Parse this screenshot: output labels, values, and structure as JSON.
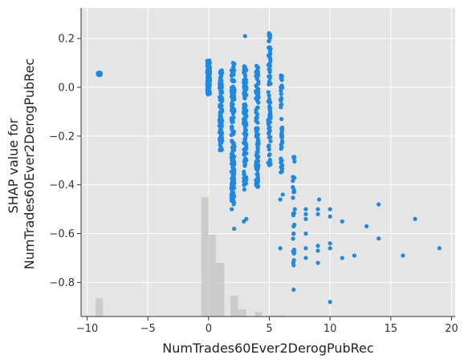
{
  "chart_data": {
    "type": "scatter",
    "title": "",
    "xlabel": "NumTrades60Ever2DerogPubRec",
    "ylabel_lines": [
      "SHAP value for",
      "NumTrades60Ever2DerogPubRec"
    ],
    "xlim": [
      -10.5,
      20.3
    ],
    "ylim": [
      -0.94,
      0.325
    ],
    "xticks": [
      -10,
      -5,
      0,
      5,
      10,
      15,
      20
    ],
    "xtick_labels": [
      "−10",
      "−5",
      "0",
      "5",
      "10",
      "15",
      "20"
    ],
    "yticks": [
      -0.8,
      -0.6,
      -0.4,
      -0.2,
      0.0,
      0.2
    ],
    "ytick_labels": [
      "−0.8",
      "−0.6",
      "−0.4",
      "−0.2",
      "0.0",
      "0.2"
    ],
    "grid": true,
    "background_color": "#e5e5e5",
    "point_color": "#1e88e5",
    "histogram_color": "#c8c8c8",
    "histogram_note": "background histogram of feature distribution, bar tops in y-data units",
    "histogram": [
      {
        "x0": -9.3,
        "x1": -8.7,
        "top": -0.865
      },
      {
        "x0": -0.6,
        "x1": 0.0,
        "top": -0.45
      },
      {
        "x0": 0.0,
        "x1": 0.6,
        "top": -0.605
      },
      {
        "x0": 0.6,
        "x1": 1.3,
        "top": -0.72
      },
      {
        "x0": 1.8,
        "x1": 2.4,
        "top": -0.855
      },
      {
        "x0": 2.4,
        "x1": 3.1,
        "top": -0.91
      },
      {
        "x0": 3.8,
        "x1": 4.4,
        "top": -0.922
      },
      {
        "x0": 5.1,
        "x1": 6.3,
        "top": -0.935
      }
    ],
    "point_groups": [
      {
        "x": -9.0,
        "ymin": 0.05,
        "ymax": 0.06,
        "jitter": 0.25,
        "n": 40
      },
      {
        "x": 0.0,
        "ymin": -0.03,
        "ymax": 0.11,
        "jitter": 0.22,
        "n": 160
      },
      {
        "x": 1.0,
        "ymin": -0.26,
        "ymax": 0.07,
        "jitter": 0.22,
        "n": 110
      },
      {
        "x": 2.0,
        "ymin": -0.48,
        "ymax": 0.12,
        "jitter": 0.25,
        "n": 150
      },
      {
        "x": 3.0,
        "ymin": -0.42,
        "ymax": 0.1,
        "jitter": 0.22,
        "n": 120
      },
      {
        "x": 4.0,
        "ymin": -0.41,
        "ymax": 0.09,
        "jitter": 0.22,
        "n": 100
      },
      {
        "x": 5.0,
        "ymin": -0.32,
        "ymax": 0.27,
        "jitter": 0.2,
        "n": 80
      },
      {
        "x": 6.0,
        "ymin": -0.35,
        "ymax": 0.05,
        "jitter": 0.15,
        "n": 40
      },
      {
        "x": 7.0,
        "ymin": -0.73,
        "ymax": -0.27,
        "jitter": 0.15,
        "n": 25
      }
    ],
    "points": [
      {
        "x": 2.1,
        "y": -0.58
      },
      {
        "x": 1.9,
        "y": -0.5
      },
      {
        "x": 3.0,
        "y": 0.21
      },
      {
        "x": 2.9,
        "y": -0.55
      },
      {
        "x": 3.1,
        "y": -0.54
      },
      {
        "x": 2.0,
        "y": -0.4
      },
      {
        "x": 5.9,
        "y": -0.66
      },
      {
        "x": 5.9,
        "y": -0.46
      },
      {
        "x": 6.1,
        "y": -0.44
      },
      {
        "x": 6.0,
        "y": -0.19
      },
      {
        "x": 6.0,
        "y": -0.17
      },
      {
        "x": 6.0,
        "y": 0.04
      },
      {
        "x": 6.0,
        "y": -0.07
      },
      {
        "x": 6.0,
        "y": -0.13
      },
      {
        "x": 7.0,
        "y": -0.83
      },
      {
        "x": 7.0,
        "y": -0.73
      },
      {
        "x": 7.0,
        "y": -0.6
      },
      {
        "x": 7.0,
        "y": -0.57
      },
      {
        "x": 7.1,
        "y": -0.5
      },
      {
        "x": 7.0,
        "y": -0.43
      },
      {
        "x": 8.0,
        "y": -0.7
      },
      {
        "x": 8.0,
        "y": -0.66
      },
      {
        "x": 8.0,
        "y": -0.6
      },
      {
        "x": 8.0,
        "y": -0.54
      },
      {
        "x": 8.0,
        "y": -0.52
      },
      {
        "x": 8.0,
        "y": -0.5
      },
      {
        "x": 9.0,
        "y": -0.72
      },
      {
        "x": 9.0,
        "y": -0.67
      },
      {
        "x": 9.0,
        "y": -0.65
      },
      {
        "x": 9.0,
        "y": -0.52
      },
      {
        "x": 9.0,
        "y": -0.5
      },
      {
        "x": 9.1,
        "y": -0.46
      },
      {
        "x": 10.0,
        "y": -0.88
      },
      {
        "x": 10.0,
        "y": -0.66
      },
      {
        "x": 10.0,
        "y": -0.64
      },
      {
        "x": 10.0,
        "y": -0.53
      },
      {
        "x": 10.0,
        "y": -0.5
      },
      {
        "x": 11.0,
        "y": -0.7
      },
      {
        "x": 11.0,
        "y": -0.55
      },
      {
        "x": 12.0,
        "y": -0.69
      },
      {
        "x": 13.0,
        "y": -0.57
      },
      {
        "x": 14.0,
        "y": -0.62
      },
      {
        "x": 14.0,
        "y": -0.48
      },
      {
        "x": 16.0,
        "y": -0.69
      },
      {
        "x": 17.0,
        "y": -0.54
      },
      {
        "x": 19.0,
        "y": -0.66
      }
    ]
  }
}
